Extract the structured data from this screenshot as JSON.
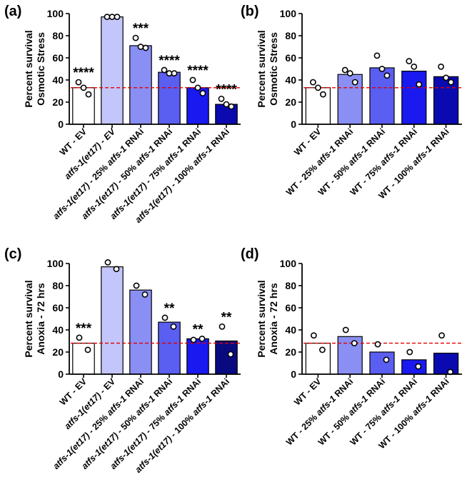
{
  "chart_data": [
    {
      "type": "bar",
      "panel": "(a)",
      "ylabel_lines": [
        "Percent survival",
        "Osmotic Stress"
      ],
      "ylim": [
        0,
        100
      ],
      "yticks": [
        0,
        20,
        40,
        60,
        80,
        100
      ],
      "reference_line": 33,
      "categories": [
        {
          "parts": [
            {
              "t": "WT - EV",
              "i": false
            }
          ]
        },
        {
          "parts": [
            {
              "t": "atfs-1(et17)",
              "i": true
            },
            {
              "t": " - EV",
              "i": true
            }
          ]
        },
        {
          "parts": [
            {
              "t": "atfs-1(et17)",
              "i": true
            },
            {
              "t": " - 25% ",
              "i": false
            },
            {
              "t": "atfs-1",
              "i": true
            },
            {
              "t": " RNAi",
              "i": false
            }
          ]
        },
        {
          "parts": [
            {
              "t": "atfs-1(et17)",
              "i": true
            },
            {
              "t": " - 50% ",
              "i": false
            },
            {
              "t": "atfs-1",
              "i": true
            },
            {
              "t": " RNAi",
              "i": false
            }
          ]
        },
        {
          "parts": [
            {
              "t": "atfs-1(et17)",
              "i": true
            },
            {
              "t": " - 75% ",
              "i": false
            },
            {
              "t": "atfs-1",
              "i": true
            },
            {
              "t": " RNAi",
              "i": false
            }
          ]
        },
        {
          "parts": [
            {
              "t": "atfs-1(et17)",
              "i": true
            },
            {
              "t": " - 100% ",
              "i": false
            },
            {
              "t": "atfs-1",
              "i": true
            },
            {
              "t": " RNAi",
              "i": false
            }
          ]
        }
      ],
      "values": [
        33,
        97,
        71,
        47,
        33,
        18
      ],
      "points": [
        [
          38,
          33,
          27
        ],
        [
          97,
          97,
          97
        ],
        [
          78,
          70,
          69
        ],
        [
          49,
          46,
          46
        ],
        [
          40,
          33,
          28
        ],
        [
          23,
          18,
          16
        ]
      ],
      "colors": [
        "#ffffff",
        "#c3c6fb",
        "#8a8ff3",
        "#5a5ef1",
        "#1919f0",
        "#0a0ab0"
      ],
      "significance": [
        "****",
        "",
        "***",
        "****",
        "****",
        "****"
      ]
    },
    {
      "type": "bar",
      "panel": "(b)",
      "ylabel_lines": [
        "Percent survival",
        "Osmotic Stress"
      ],
      "ylim": [
        0,
        100
      ],
      "yticks": [
        0,
        20,
        40,
        60,
        80,
        100
      ],
      "reference_line": 33,
      "categories": [
        {
          "parts": [
            {
              "t": "WT - EV",
              "i": false
            }
          ]
        },
        {
          "parts": [
            {
              "t": "WT - 25% ",
              "i": false
            },
            {
              "t": "atfs-1",
              "i": true
            },
            {
              "t": " RNAi",
              "i": false
            }
          ]
        },
        {
          "parts": [
            {
              "t": "WT - 50% ",
              "i": false
            },
            {
              "t": "atfs-1",
              "i": true
            },
            {
              "t": " RNAi",
              "i": false
            }
          ]
        },
        {
          "parts": [
            {
              "t": "WT - 75% ",
              "i": false
            },
            {
              "t": "atfs-1",
              "i": true
            },
            {
              "t": " RNAi",
              "i": false
            }
          ]
        },
        {
          "parts": [
            {
              "t": "WT - 100% ",
              "i": false
            },
            {
              "t": "atfs-1",
              "i": true
            },
            {
              "t": " RNAi",
              "i": false
            }
          ]
        }
      ],
      "values": [
        33,
        45,
        51,
        48,
        43
      ],
      "points": [
        [
          38,
          33,
          27
        ],
        [
          49,
          46,
          38
        ],
        [
          62,
          50,
          44
        ],
        [
          57,
          52,
          36
        ],
        [
          52,
          42,
          38
        ]
      ],
      "colors": [
        "#ffffff",
        "#8a8ff3",
        "#5a5ef1",
        "#1919f0",
        "#0a0ab0"
      ],
      "significance": [
        "",
        "",
        "",
        "",
        ""
      ]
    },
    {
      "type": "bar",
      "panel": "(c)",
      "ylabel_lines": [
        "Percent survival",
        "Anoxia - 72 hrs"
      ],
      "ylim": [
        0,
        100
      ],
      "yticks": [
        0,
        20,
        40,
        60,
        80,
        100
      ],
      "reference_line": 28,
      "categories": [
        {
          "parts": [
            {
              "t": "WT - EV",
              "i": false
            }
          ]
        },
        {
          "parts": [
            {
              "t": "atfs-1(et17)",
              "i": true
            },
            {
              "t": " - EV",
              "i": false
            }
          ]
        },
        {
          "parts": [
            {
              "t": "atfs-1(et17)",
              "i": true
            },
            {
              "t": " - 25% ",
              "i": false
            },
            {
              "t": "atfs-1",
              "i": true
            },
            {
              "t": " RNAi",
              "i": false
            }
          ]
        },
        {
          "parts": [
            {
              "t": "atfs-1(et17)",
              "i": true
            },
            {
              "t": " - 50% ",
              "i": false
            },
            {
              "t": "atfs-1",
              "i": true
            },
            {
              "t": " RNAi",
              "i": false
            }
          ]
        },
        {
          "parts": [
            {
              "t": "atfs-1(et17)",
              "i": true
            },
            {
              "t": " - 75% ",
              "i": false
            },
            {
              "t": "atfs-1",
              "i": true
            },
            {
              "t": " RNAi",
              "i": false
            }
          ]
        },
        {
          "parts": [
            {
              "t": "atfs-1(et17)",
              "i": true
            },
            {
              "t": " - 100% ",
              "i": false
            },
            {
              "t": "atfs-1",
              "i": true
            },
            {
              "t": " RNAi",
              "i": false
            }
          ]
        }
      ],
      "values": [
        28,
        97,
        76,
        47,
        32,
        30
      ],
      "points": [
        [
          33,
          22
        ],
        [
          101,
          95
        ],
        [
          80,
          72
        ],
        [
          51,
          43
        ],
        [
          31,
          32
        ],
        [
          43,
          18
        ]
      ],
      "colors": [
        "#ffffff",
        "#c3c6fb",
        "#8a8ff3",
        "#5a5ef1",
        "#1919f0",
        "#0a0a80"
      ],
      "significance": [
        "***",
        "",
        "",
        "**",
        "**",
        "**"
      ]
    },
    {
      "type": "bar",
      "panel": "(d)",
      "ylabel_lines": [
        "Percent survival",
        "Anoxia - 72 hrs"
      ],
      "ylim": [
        0,
        100
      ],
      "yticks": [
        0,
        20,
        40,
        60,
        80,
        100
      ],
      "reference_line": 28,
      "categories": [
        {
          "parts": [
            {
              "t": "WT - EV",
              "i": false
            }
          ]
        },
        {
          "parts": [
            {
              "t": "WT - 25% ",
              "i": false
            },
            {
              "t": "atfs-1",
              "i": true
            },
            {
              "t": " RNAi",
              "i": false
            }
          ]
        },
        {
          "parts": [
            {
              "t": "WT - 50% ",
              "i": false
            },
            {
              "t": "atfs-1",
              "i": true
            },
            {
              "t": " RNAi",
              "i": false
            }
          ]
        },
        {
          "parts": [
            {
              "t": "WT - 75% ",
              "i": false
            },
            {
              "t": "atfs-1",
              "i": true
            },
            {
              "t": " RNAi",
              "i": false
            }
          ]
        },
        {
          "parts": [
            {
              "t": "WT - 100% ",
              "i": false
            },
            {
              "t": "atfs-1",
              "i": true
            },
            {
              "t": " RNAi",
              "i": false
            }
          ]
        }
      ],
      "values": [
        28,
        34,
        20,
        13,
        19
      ],
      "points": [
        [
          35,
          22
        ],
        [
          40,
          28
        ],
        [
          27,
          13
        ],
        [
          20,
          7
        ],
        [
          35,
          2
        ]
      ],
      "colors": [
        "#ffffff",
        "#8a8ff3",
        "#5a5ef1",
        "#1919f0",
        "#0a0ab0"
      ],
      "significance": [
        "",
        "",
        "",
        "",
        ""
      ]
    }
  ]
}
